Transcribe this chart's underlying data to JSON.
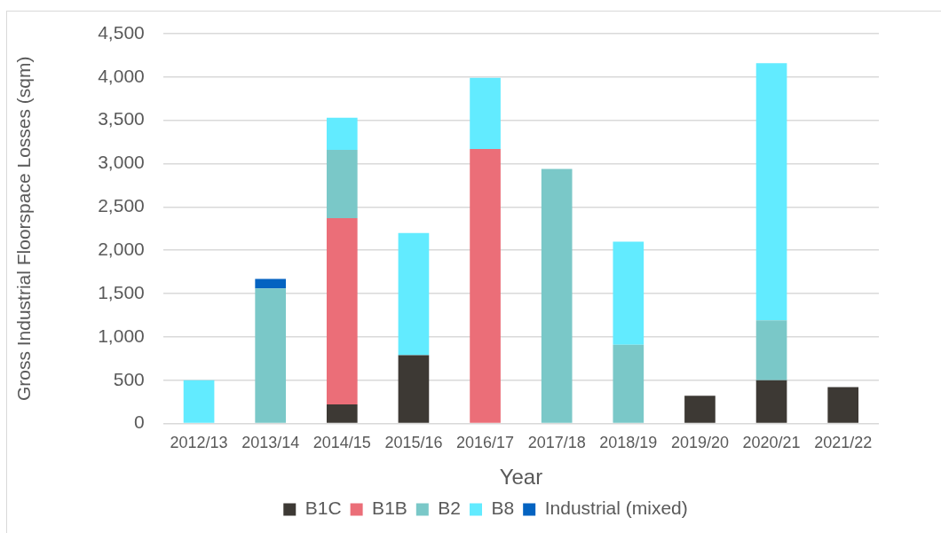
{
  "chart_data": {
    "type": "bar",
    "xlabel": "Year",
    "ylabel": "Gross Industrial Floorspace Losses (sqm)",
    "categories": [
      "2012/13",
      "2013/14",
      "2014/15",
      "2015/16",
      "2016/17",
      "2017/18",
      "2018/19",
      "2019/20",
      "2020/21",
      "2021/22"
    ],
    "series": [
      {
        "name": "B1C",
        "color": "#3d3934",
        "values": [
          null,
          null,
          220,
          790,
          null,
          null,
          null,
          320,
          500,
          420
        ]
      },
      {
        "name": "B1B",
        "color": "#eb6e78",
        "values": [
          null,
          null,
          2150,
          null,
          3170,
          null,
          null,
          null,
          null,
          null
        ]
      },
      {
        "name": "B2",
        "color": "#7ac8c8",
        "values": [
          null,
          1560,
          790,
          null,
          null,
          2940,
          910,
          null,
          690,
          null
        ]
      },
      {
        "name": "B8",
        "color": "#62ebff",
        "values": [
          500,
          null,
          370,
          1410,
          820,
          null,
          1190,
          null,
          2970,
          null
        ]
      },
      {
        "name": "Industrial (mixed)",
        "color": "#0463c1",
        "values": [
          null,
          110,
          null,
          null,
          null,
          null,
          null,
          null,
          null,
          null
        ]
      }
    ],
    "stacked": true,
    "ylim": [
      0,
      4500
    ],
    "yticks": [
      0,
      {
        "value": 500,
        "label": "500"
      },
      {
        "value": 1000,
        "label": "1,000"
      },
      {
        "value": 1500,
        "label": "1,500"
      },
      {
        "value": 2000,
        "label": "2,000"
      },
      {
        "value": 2500,
        "label": "2,500"
      },
      {
        "value": 3000,
        "label": "3,000"
      },
      {
        "value": 3500,
        "label": "3,500"
      },
      {
        "value": 4000,
        "label": "4,000"
      },
      {
        "value": 4500,
        "label": "4,500"
      }
    ],
    "grid": "y",
    "legend": "bottom"
  }
}
